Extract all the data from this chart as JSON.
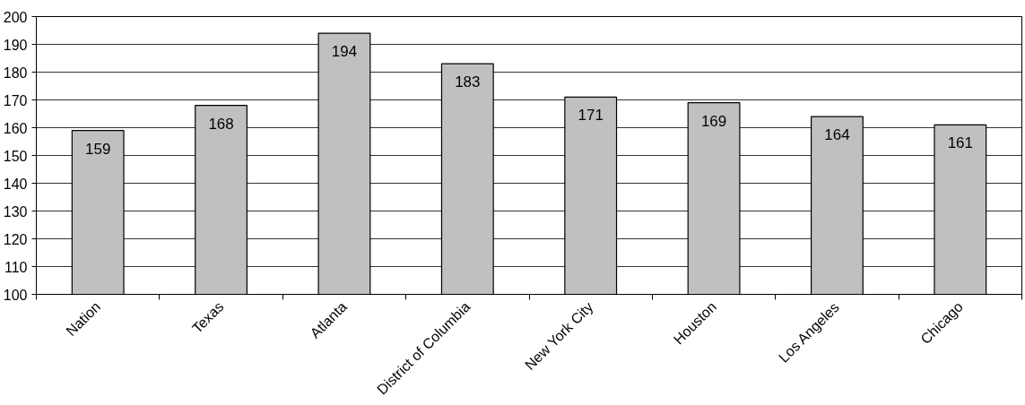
{
  "chart_data": {
    "type": "bar",
    "categories": [
      "Nation",
      "Texas",
      "Atlanta",
      "District of Columbia",
      "New York City",
      "Houston",
      "Los Angeles",
      "Chicago"
    ],
    "values": [
      159,
      168,
      194,
      183,
      171,
      169,
      164,
      161
    ],
    "color": "#c0c0c0",
    "ylim": [
      100,
      200
    ],
    "yticks": [
      100,
      110,
      120,
      130,
      140,
      150,
      160,
      170,
      180,
      190,
      200
    ],
    "grid": "y",
    "data_labels": true
  }
}
